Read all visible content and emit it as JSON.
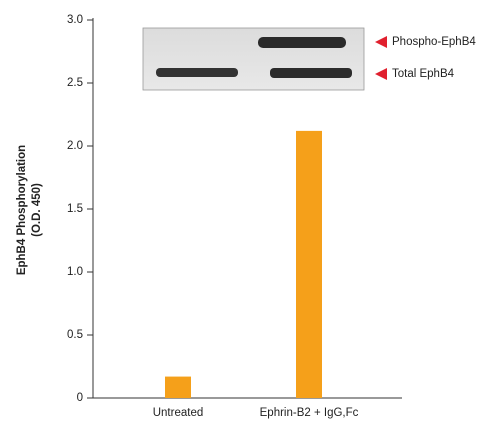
{
  "chart_data": {
    "type": "bar",
    "ylabel": [
      "EphB4 Phosphorylation",
      "(O.D. 450)"
    ],
    "categories": [
      "Untreated",
      "Ephrin-B2 + IgG,Fc"
    ],
    "values": [
      0.17,
      2.12
    ],
    "color": "#f5a01a",
    "ylim": [
      0,
      3.0
    ],
    "yticks": [
      0,
      0.5,
      {
        "value": 1.0,
        "label": "1.0"
      },
      1.5,
      {
        "value": 2.0,
        "label": "2.0"
      },
      2.5,
      {
        "value": 3.0,
        "label": "3.0"
      }
    ],
    "annotations": [
      "Phospho-EphB4",
      "Total EphB4"
    ],
    "annotation_color": "#e0202e"
  }
}
